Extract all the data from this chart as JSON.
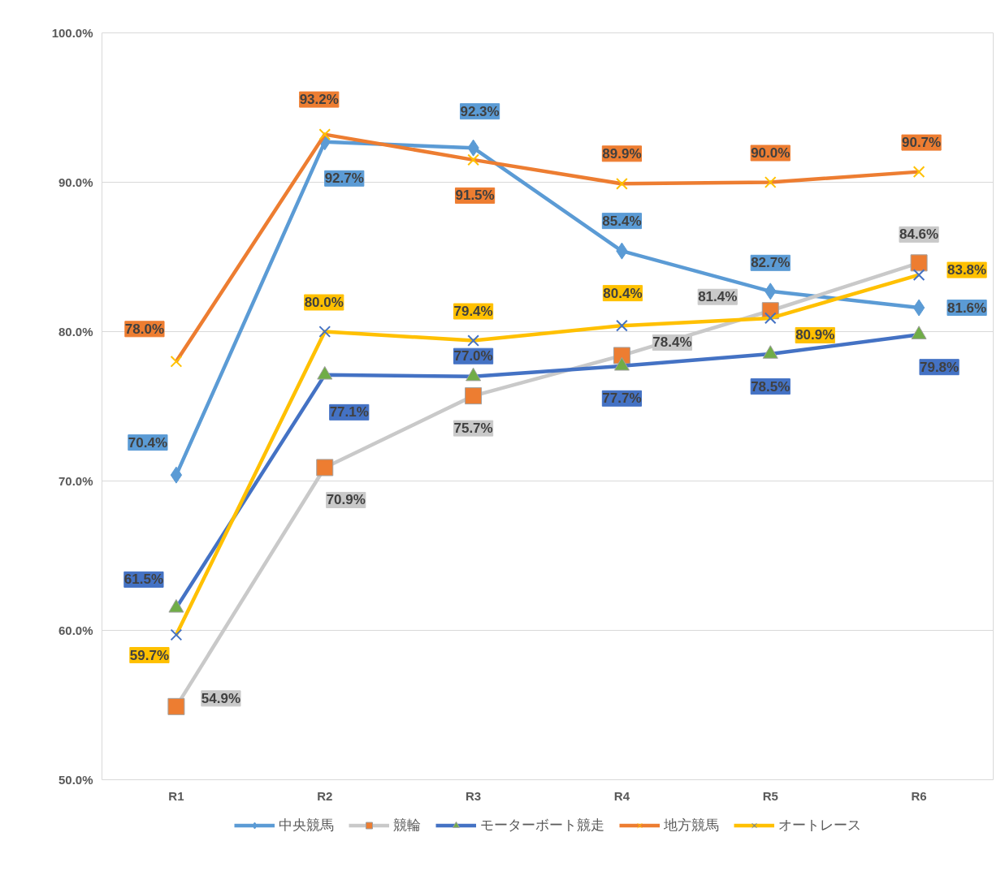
{
  "chart_data": {
    "type": "line",
    "categories": [
      "R1",
      "R2",
      "R3",
      "R4",
      "R5",
      "R6"
    ],
    "ylim": [
      50,
      100
    ],
    "yticks": [
      {
        "value": 50,
        "label": "50.0%"
      },
      {
        "value": 60,
        "label": "60.0%"
      },
      {
        "value": 70,
        "label": "70.0%"
      },
      {
        "value": 80,
        "label": "80.0%"
      },
      {
        "value": 90,
        "label": "90.0%"
      },
      {
        "value": 100,
        "label": "100.0%"
      }
    ],
    "grid": "y",
    "legend": "bottom",
    "series": [
      {
        "name": "中央競馬",
        "color": "#5b9bd5",
        "marker": "diamond",
        "colors": [
          "#5b9bd5",
          "#5b9bd5",
          "#5b9bd5",
          "#5b9bd5",
          "#5b9bd5",
          "#5b9bd5"
        ],
        "values": [
          70.4,
          92.7,
          92.3,
          85.4,
          82.7,
          81.6
        ],
        "value_labels": [
          "70.4%",
          "92.7%",
          "92.3%",
          "85.4%",
          "82.7%",
          "81.6%"
        ]
      },
      {
        "name": "競輪",
        "color": "#c9c9c9",
        "marker": "square",
        "colors": [
          "#ed7d31",
          "#ed7d31",
          "#ed7d31",
          "#ed7d31",
          "#ed7d31",
          "#ed7d31"
        ],
        "values": [
          54.9,
          70.9,
          75.7,
          78.4,
          81.4,
          84.6
        ],
        "value_labels": [
          "54.9%",
          "70.9%",
          "75.7%",
          "78.4%",
          "81.4%",
          "84.6%"
        ]
      },
      {
        "name": "モーターボート競走",
        "color": "#4472c4",
        "marker": "triangle",
        "colors": [
          "#70ad47",
          "#70ad47",
          "#70ad47",
          "#70ad47",
          "#70ad47",
          "#70ad47"
        ],
        "values": [
          61.5,
          77.1,
          77.0,
          77.7,
          78.5,
          79.8
        ],
        "value_labels": [
          "61.5%",
          "77.1%",
          "77.0%",
          "77.7%",
          "78.5%",
          "79.8%"
        ]
      },
      {
        "name": "地方競馬",
        "color": "#ed7d31",
        "marker": "cross",
        "colors": [
          "#ffc000",
          "#ffc000",
          "#ffc000",
          "#ffc000",
          "#ffc000",
          "#ffc000"
        ],
        "values": [
          78.0,
          93.2,
          91.5,
          89.9,
          90.0,
          90.7
        ],
        "value_labels": [
          "78.0%",
          "93.2%",
          "91.5%",
          "89.9%",
          "90.0%",
          "90.7%"
        ]
      },
      {
        "name": "オートレース",
        "color": "#ffc000",
        "marker": "cross",
        "colors": [
          "#4472c4",
          "#4472c4",
          "#4472c4",
          "#4472c4",
          "#4472c4",
          "#4472c4"
        ],
        "values": [
          59.7,
          80.0,
          79.4,
          80.4,
          80.9,
          83.8
        ],
        "value_labels": [
          "59.7%",
          "80.0%",
          "79.4%",
          "80.4%",
          "80.9%",
          "83.8%"
        ]
      }
    ]
  }
}
